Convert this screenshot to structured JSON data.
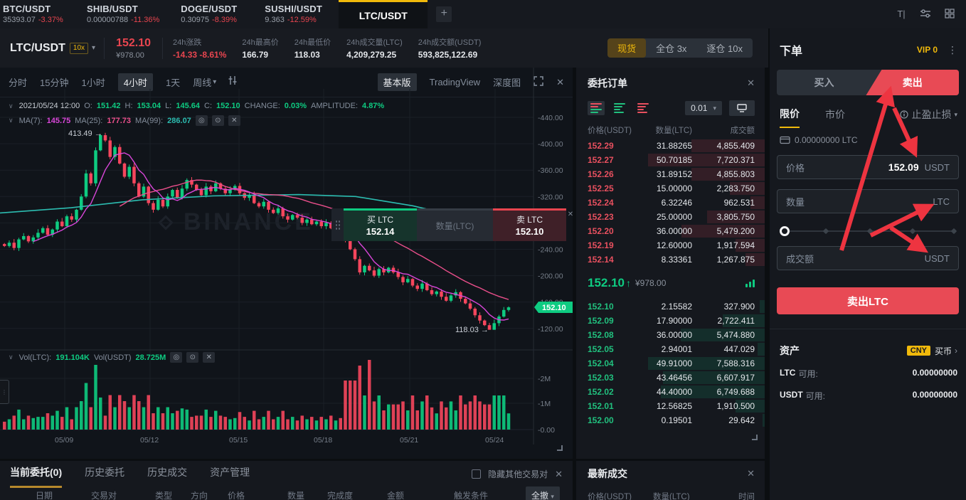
{
  "topbar": {
    "tickers": [
      {
        "pair": "BTC/USDT",
        "price": "35393.07",
        "change": "-3.37%"
      },
      {
        "pair": "SHIB/USDT",
        "price": "0.00000788",
        "change": "-11.36%"
      },
      {
        "pair": "DOGE/USDT",
        "price": "0.30975",
        "change": "-8.39%"
      },
      {
        "pair": "SUSHI/USDT",
        "price": "9.363",
        "change": "-12.59%"
      }
    ],
    "active_pair": "LTC/USDT",
    "add_label": "+",
    "icons": [
      "text-tool-icon",
      "sliders-icon",
      "grid-layout-icon"
    ]
  },
  "header": {
    "pair": "LTC/USDT",
    "leverage": "10x",
    "price": "152.10",
    "price_cny": "¥978.00",
    "stats": [
      {
        "label": "24h涨跌",
        "value": "-14.33 -8.61%",
        "red": true
      },
      {
        "label": "24h最高价",
        "value": "166.79"
      },
      {
        "label": "24h最低价",
        "value": "118.03"
      },
      {
        "label": "24h成交量(LTC)",
        "value": "4,209,279.25"
      },
      {
        "label": "24h成交额(USDT)",
        "value": "593,825,122.69"
      }
    ],
    "modes": [
      "现货",
      "全仓 3x",
      "逐仓 10x"
    ],
    "active_mode": "现货"
  },
  "chart": {
    "toolbar": {
      "intervals": [
        "分时",
        "15分钟",
        "1小时",
        "4小时",
        "1天",
        "周线"
      ],
      "active_interval": "4小时",
      "views": [
        "基本版",
        "TradingView",
        "深度图"
      ],
      "active_view": "基本版"
    },
    "legend": {
      "date": "2021/05/24 12:00",
      "o_label": "O:",
      "o": "151.42",
      "h_label": "H:",
      "h": "153.04",
      "l_label": "L:",
      "l": "145.64",
      "c_label": "C:",
      "c": "152.10",
      "change_label": "CHANGE:",
      "change": "0.03%",
      "amplitude_label": "AMPLITUDE:",
      "amplitude": "4.87%",
      "ma7_label": "MA(7):",
      "ma7": "145.75",
      "ma25_label": "MA(25):",
      "ma25": "177.73",
      "ma99_label": "MA(99):",
      "ma99": "286.07"
    },
    "vol_legend": {
      "l1": "Vol(LTC):",
      "v1": "191.104K",
      "l2": "Vol(USDT)",
      "v2": "28.725M"
    },
    "watermark": "BINANCE",
    "trade_widget": {
      "buy_label": "买 LTC",
      "buy_price": "152.14",
      "qty_placeholder": "数量(LTC)",
      "sell_label": "卖 LTC",
      "sell_price": "152.10"
    },
    "chart_data": {
      "type": "candlestick",
      "title": "LTC/USDT 4小时",
      "ylim": [
        118.03,
        440.0
      ],
      "price_axis_labels": [
        "440.00",
        "400.00",
        "360.00",
        "320.00",
        "280.00",
        "240.00",
        "200.00",
        "160.00",
        "120.00"
      ],
      "vol_axis_labels": [
        "2M",
        "1M",
        "0.00"
      ],
      "x_labels": [
        "05/09",
        "05/12",
        "05/15",
        "05/18",
        "05/21",
        "05/24"
      ],
      "high_annotation": "413.49",
      "low_annotation": "118.03",
      "last_price_tag": "152.10",
      "closes": [
        245,
        250,
        242,
        255,
        260,
        252,
        258,
        265,
        272,
        262,
        270,
        282,
        275,
        290,
        285,
        300,
        320,
        355,
        340,
        390,
        413,
        405,
        380,
        395,
        370,
        350,
        365,
        340,
        320,
        335,
        310,
        300,
        315,
        305,
        320,
        330,
        318,
        332,
        345,
        338,
        330,
        322,
        335,
        328,
        340,
        332,
        325,
        330,
        336,
        325,
        318,
        322,
        310,
        305,
        312,
        300,
        295,
        302,
        290,
        285,
        292,
        288,
        280,
        285,
        278,
        282,
        275,
        280,
        272,
        276,
        270,
        255,
        240,
        225,
        205,
        215,
        208,
        200,
        210,
        205,
        212,
        205,
        198,
        190,
        195,
        185,
        180,
        188,
        178,
        172,
        176,
        168,
        162,
        170,
        175,
        165,
        158,
        150,
        140,
        132,
        125,
        118,
        128,
        138,
        148,
        152
      ],
      "ma99_points": [
        [
          0,
          295
        ],
        [
          100,
          303
        ],
        [
          200,
          315
        ],
        [
          300,
          321
        ],
        [
          420,
          323
        ],
        [
          500,
          320
        ],
        [
          580,
          306
        ],
        [
          660,
          286
        ],
        [
          750,
          258
        ]
      ]
    }
  },
  "orderbook": {
    "title": "委托订单",
    "tick_size": "0.01",
    "headers": [
      "价格(USDT)",
      "数量(LTC)",
      "成交额"
    ],
    "asks": [
      [
        "152.29",
        "31.88265",
        "4,855.409"
      ],
      [
        "152.27",
        "50.70185",
        "7,720.371"
      ],
      [
        "152.26",
        "31.89152",
        "4,855.803"
      ],
      [
        "152.25",
        "15.00000",
        "2,283.750"
      ],
      [
        "152.24",
        "6.32246",
        "962.531"
      ],
      [
        "152.23",
        "25.00000",
        "3,805.750"
      ],
      [
        "152.20",
        "36.00000",
        "5,479.200"
      ],
      [
        "152.19",
        "12.60000",
        "1,917.594"
      ],
      [
        "152.14",
        "8.33361",
        "1,267.875"
      ]
    ],
    "mid": {
      "price": "152.10",
      "arrow": "↑",
      "cny": "¥978.00"
    },
    "bids": [
      [
        "152.10",
        "2.15582",
        "327.900"
      ],
      [
        "152.09",
        "17.90000",
        "2,722.411"
      ],
      [
        "152.08",
        "36.00000",
        "5,474.880"
      ],
      [
        "152.05",
        "2.94001",
        "447.029"
      ],
      [
        "152.04",
        "49.91000",
        "7,588.316"
      ],
      [
        "152.03",
        "43.46456",
        "6,607.917"
      ],
      [
        "152.02",
        "44.40000",
        "6,749.688"
      ],
      [
        "152.01",
        "12.56825",
        "1,910.500"
      ],
      [
        "152.00",
        "0.19501",
        "29.642"
      ]
    ]
  },
  "order_panel": {
    "title": "下单",
    "vip": "VIP 0",
    "buy_tab": "买入",
    "sell_tab": "卖出",
    "limit_tab": "限价",
    "market_tab": "市价",
    "stop_tab": "止盈止损",
    "balance": "0.00000000 LTC",
    "price_label": "价格",
    "price_value": "152.09",
    "price_unit": "USDT",
    "qty_label": "数量",
    "qty_unit": "LTC",
    "total_label": "成交额",
    "total_unit": "USDT",
    "submit_label": "卖出LTC"
  },
  "assets": {
    "title": "资产",
    "currency_badge": "CNY",
    "buy_crypto": "买币",
    "rows": [
      {
        "asset": "LTC",
        "label": "可用:",
        "value": "0.00000000"
      },
      {
        "asset": "USDT",
        "label": "可用:",
        "value": "0.00000000"
      }
    ]
  },
  "bottom": {
    "tabs": [
      "当前委托(0)",
      "历史委托",
      "历史成交",
      "资产管理"
    ],
    "active_tab": "当前委托(0)",
    "hide_label": "隐藏其他交易对",
    "columns": [
      "日期",
      "交易对",
      "类型",
      "方向",
      "价格",
      "数量",
      "完成度",
      "金额",
      "触发条件"
    ],
    "cancel_all": "全撤"
  },
  "trades": {
    "title": "最新成交",
    "headers": [
      "价格(USDT)",
      "数量(LTC)",
      "时间"
    ]
  }
}
